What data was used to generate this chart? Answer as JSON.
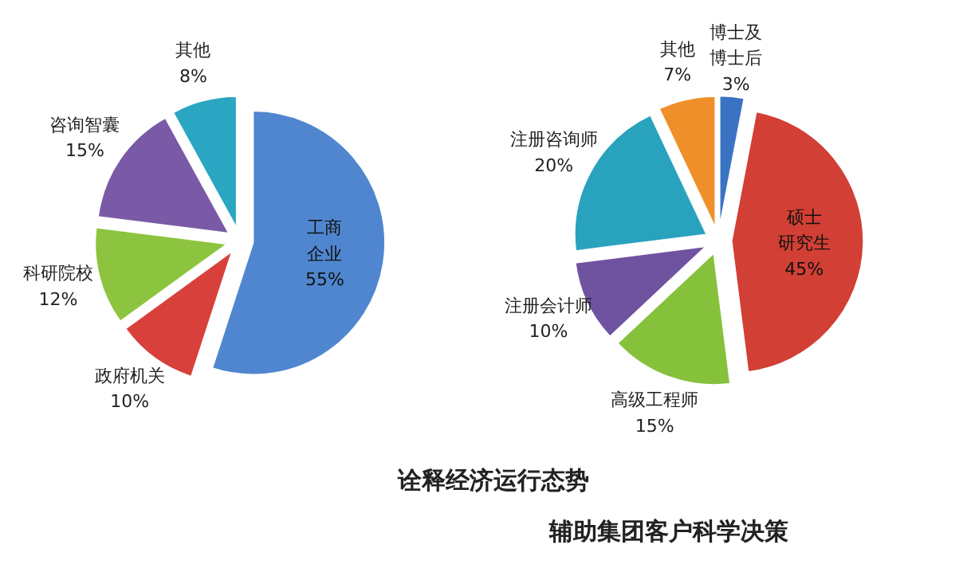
{
  "chart_data": [
    {
      "type": "pie",
      "categories": [
        "工商企业",
        "政府机关",
        "科研院校",
        "咨询智囊",
        "其他"
      ],
      "values": [
        55,
        10,
        12,
        15,
        8
      ],
      "value_labels": [
        "55%",
        "10%",
        "12%",
        "15%",
        "8%"
      ],
      "colors": [
        "#4f86cf",
        "#d8413b",
        "#8cc43f",
        "#7a5aa6",
        "#2aa6c2"
      ]
    },
    {
      "type": "pie",
      "categories": [
        "博士及博士后",
        "硕士研究生",
        "高级工程师",
        "注册会计师",
        "注册咨询师",
        "其他"
      ],
      "values": [
        3,
        45,
        15,
        10,
        20,
        7
      ],
      "value_labels": [
        "3%",
        "45%",
        "15%",
        "10%",
        "20%",
        "7%"
      ],
      "colors": [
        "#3b73c4",
        "#d23f35",
        "#86c13c",
        "#6f52a0",
        "#29a3bd",
        "#ef8f2a"
      ]
    },
    {
      "type": "other",
      "annotations": [
        "诠释经济运行态势",
        "辅助集团客户科学决策"
      ]
    }
  ]
}
